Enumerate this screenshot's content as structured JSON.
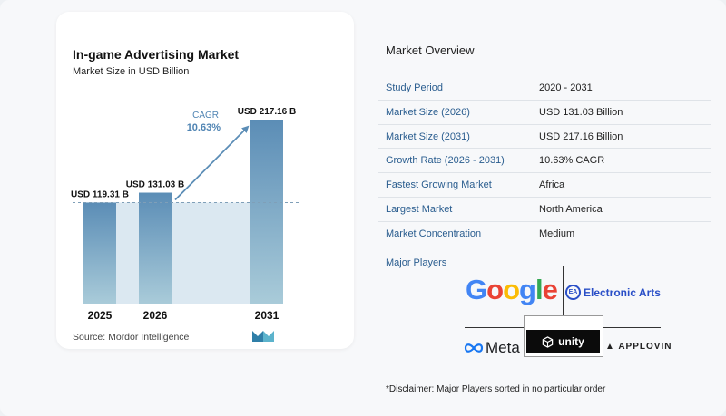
{
  "chart_data": {
    "type": "bar",
    "title": "In-game Advertising Market",
    "subtitle": "Market Size in USD Billion",
    "categories": [
      "2025",
      "2026",
      "2031"
    ],
    "values": [
      119.31,
      131.03,
      217.16
    ],
    "data_labels": [
      "USD 119.31 B",
      "USD 131.03 B",
      "USD 217.16 B"
    ],
    "ylim": [
      0,
      217.16
    ],
    "cagr_label": "CAGR",
    "cagr_value": "10.63%",
    "colors": {
      "bar_top": "#5b8db6",
      "bar_bottom": "#a9cbd9",
      "shade": "#dbe8f1",
      "arrow": "#5b8db6",
      "cagr": "#4f84b3"
    }
  },
  "source": "Source:  Mordor Intelligence",
  "logo_icon": "mordor-intelligence-logo",
  "overview": {
    "title": "Market Overview",
    "rows": [
      {
        "label": "Study Period",
        "value": "2020 - 2031"
      },
      {
        "label": "Market Size (2026)",
        "value": "USD 131.03 Billion"
      },
      {
        "label": "Market Size (2031)",
        "value": "USD 217.16 Billion"
      },
      {
        "label": "Growth Rate (2026 - 2031)",
        "value": "10.63% CAGR"
      },
      {
        "label": "Fastest Growing Market",
        "value": "Africa"
      },
      {
        "label": "Largest Market",
        "value": "North America"
      },
      {
        "label": "Market Concentration",
        "value": "Medium"
      }
    ]
  },
  "players": {
    "title": "Major Players",
    "google": "Google",
    "ea": "Electronic Arts",
    "ea_badge": "EA",
    "meta": "Meta",
    "unity": "unity",
    "applovin": "APPLOVIN"
  },
  "disclaimer": "*Disclaimer: Major Players sorted in no particular order"
}
